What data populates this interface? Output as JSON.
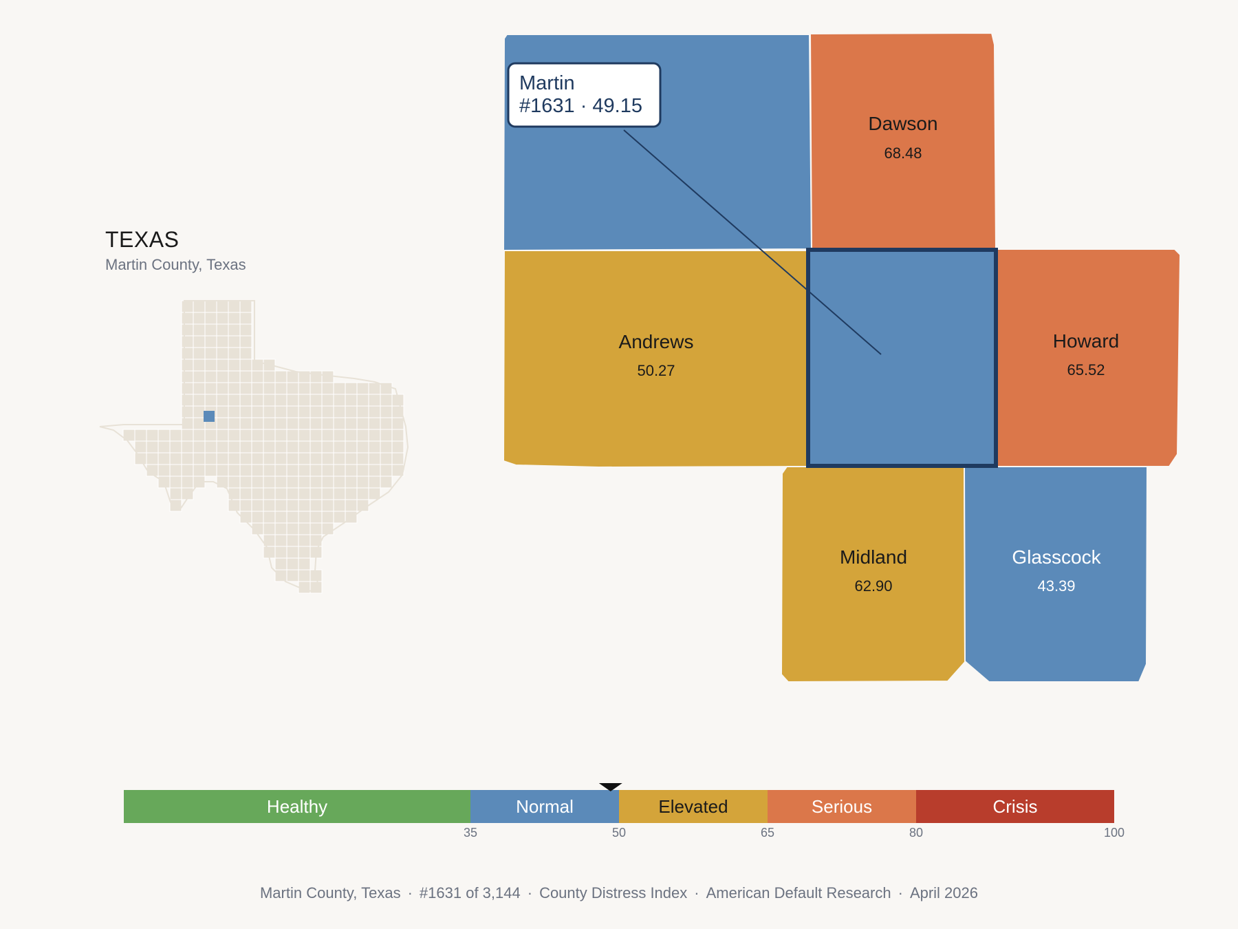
{
  "inset": {
    "title": "TEXAS",
    "subtitle": "Martin County, Texas",
    "land_color": "#e8e2d7",
    "highlight_color": "#5b8ab9"
  },
  "focus": {
    "name": "Martin",
    "rank_score": "#1631 · 49.15",
    "color": "#5b8ab9"
  },
  "counties": [
    {
      "id": "martin-north",
      "name": "",
      "score": "",
      "category": "Normal"
    },
    {
      "id": "dawson",
      "name": "Dawson",
      "score": "68.48",
      "category": "Serious"
    },
    {
      "id": "andrews",
      "name": "Andrews",
      "score": "50.27",
      "category": "Elevated"
    },
    {
      "id": "martin",
      "name": "",
      "score": "",
      "category": "Normal"
    },
    {
      "id": "howard",
      "name": "Howard",
      "score": "65.52",
      "category": "Serious"
    },
    {
      "id": "midland",
      "name": "Midland",
      "score": "62.90",
      "category": "Elevated"
    },
    {
      "id": "glasscock",
      "name": "Glasscock",
      "score": "43.39",
      "category": "Normal"
    }
  ],
  "legend": {
    "min": 0,
    "max": 100,
    "marker_value": 49.15,
    "categories": [
      {
        "label": "Healthy",
        "from": 0,
        "to": 35,
        "color": "#67a85a"
      },
      {
        "label": "Normal",
        "from": 35,
        "to": 50,
        "color": "#5b8ab9"
      },
      {
        "label": "Elevated",
        "from": 50,
        "to": 65,
        "color": "#d4a43a"
      },
      {
        "label": "Serious",
        "from": 65,
        "to": 80,
        "color": "#db774a"
      },
      {
        "label": "Crisis",
        "from": 80,
        "to": 100,
        "color": "#b83d2c"
      }
    ],
    "ticks": [
      "35",
      "50",
      "65",
      "80",
      "100"
    ]
  },
  "footer": {
    "county": "Martin County, Texas",
    "rank": "#1631 of 3,144",
    "index": "County Distress Index",
    "org": "American Default Research",
    "date": "April 2026",
    "separator": "·"
  }
}
